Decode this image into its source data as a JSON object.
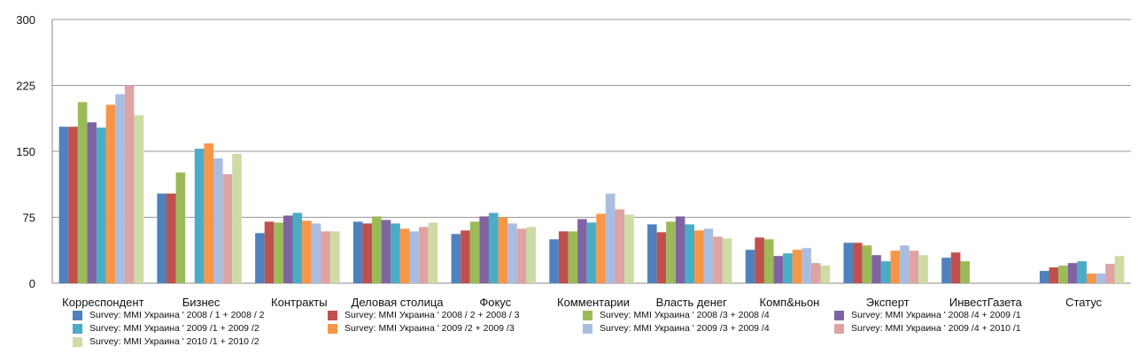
{
  "chart_data": {
    "type": "bar",
    "categories": [
      "Корреспондент",
      "Бизнес",
      "Контракты",
      "Деловая столица",
      "Фокус",
      "Комментарии",
      "Власть денег",
      "Комп&ньон",
      "Эксперт",
      "ИнвестГазета",
      "Статус"
    ],
    "ylim": [
      0,
      300
    ],
    "yticks": [
      0,
      75,
      150,
      225,
      300
    ],
    "grid": true,
    "legend_position": "bottom",
    "series": [
      {
        "name": "Survey: MMI Украина ' 2008 / 1 + 2008 / 2",
        "color": "#4f81bd",
        "values": [
          178,
          102,
          57,
          70,
          56,
          50,
          67,
          38,
          46,
          29,
          14
        ]
      },
      {
        "name": "Survey: MMI Украина ' 2008 / 2 + 2008 / 3",
        "color": "#c0504d",
        "values": [
          178,
          102,
          70,
          68,
          60,
          59,
          58,
          52,
          46,
          35,
          18
        ]
      },
      {
        "name": "Survey: MMI Украина ' 2008 /3 + 2008 /4",
        "color": "#9bbb59",
        "values": [
          206,
          126,
          69,
          76,
          70,
          59,
          70,
          50,
          43,
          25,
          20
        ]
      },
      {
        "name": "Survey: MMI Украина ' 2008 /4 + 2009 /1",
        "color": "#8064a2",
        "values": [
          183,
          0,
          77,
          72,
          76,
          73,
          76,
          31,
          32,
          0,
          23
        ]
      },
      {
        "name": "Survey: MMI Украина ' 2009 /1 + 2009 /2",
        "color": "#4bacc6",
        "values": [
          177,
          153,
          80,
          68,
          80,
          69,
          67,
          34,
          25,
          0,
          25
        ]
      },
      {
        "name": "Survey: MMI Украина ' 2009 /2 + 2009 /3",
        "color": "#f79646",
        "values": [
          203,
          159,
          71,
          62,
          75,
          79,
          60,
          38,
          37,
          0,
          11
        ]
      },
      {
        "name": "Survey: MMI Украина ' 2009 /3 + 2009 /4",
        "color": "#a9bde0",
        "values": [
          215,
          142,
          68,
          59,
          68,
          102,
          62,
          40,
          43,
          0,
          11
        ]
      },
      {
        "name": "Survey: MMI Украина ' 2009 /4 + 2010 /1",
        "color": "#dea3a2",
        "values": [
          225,
          124,
          59,
          64,
          62,
          84,
          53,
          23,
          37,
          0,
          22
        ]
      },
      {
        "name": "Survey: MMI Украина ' 2010 /1 + 2010 /2",
        "color": "#ccdca4",
        "values": [
          191,
          147,
          59,
          69,
          64,
          78,
          51,
          20,
          32,
          0,
          31
        ]
      }
    ]
  }
}
